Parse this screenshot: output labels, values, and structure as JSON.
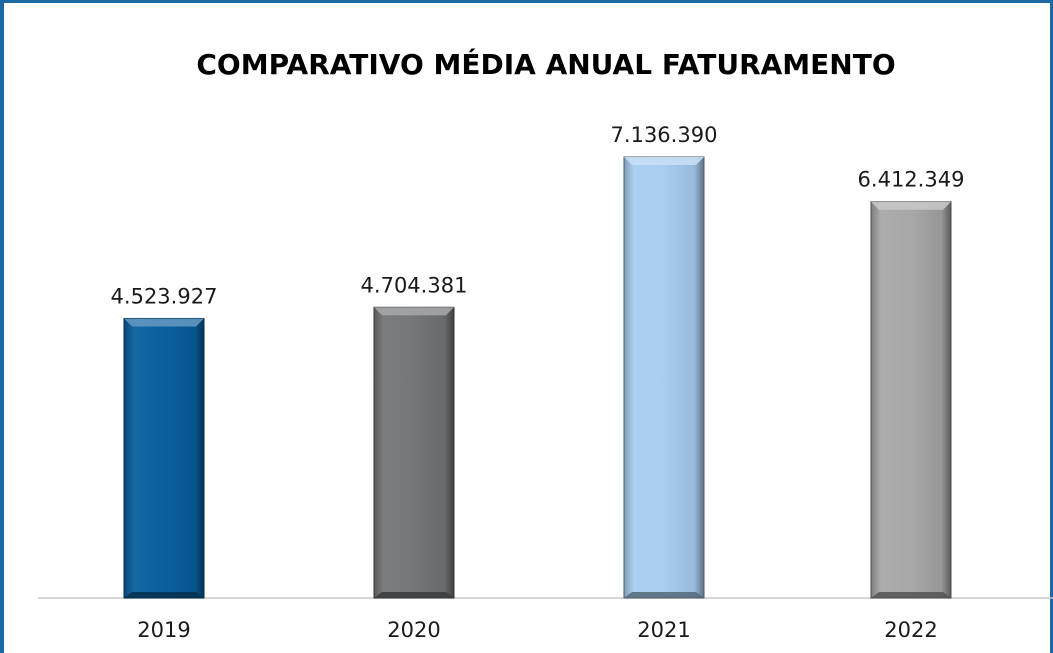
{
  "chart_data": {
    "type": "bar",
    "title": "COMPARATIVO MÉDIA ANUAL FATURAMENTO",
    "categories": [
      "2019",
      "2020",
      "2021",
      "2022"
    ],
    "values": [
      4523927,
      4704381,
      7136390,
      6412349
    ],
    "value_labels": [
      "4.523.927",
      "4.704.381",
      "7.136.390",
      "6.412.349"
    ],
    "bar_colors": [
      "#0a5f9e",
      "#747678",
      "#a9cdf0",
      "#a8a8a8"
    ],
    "border_color": "#1b6aa5",
    "axis_color": "#c8c8c8",
    "ylim": [
      0,
      8000000
    ],
    "grid": false,
    "legend": "none"
  }
}
